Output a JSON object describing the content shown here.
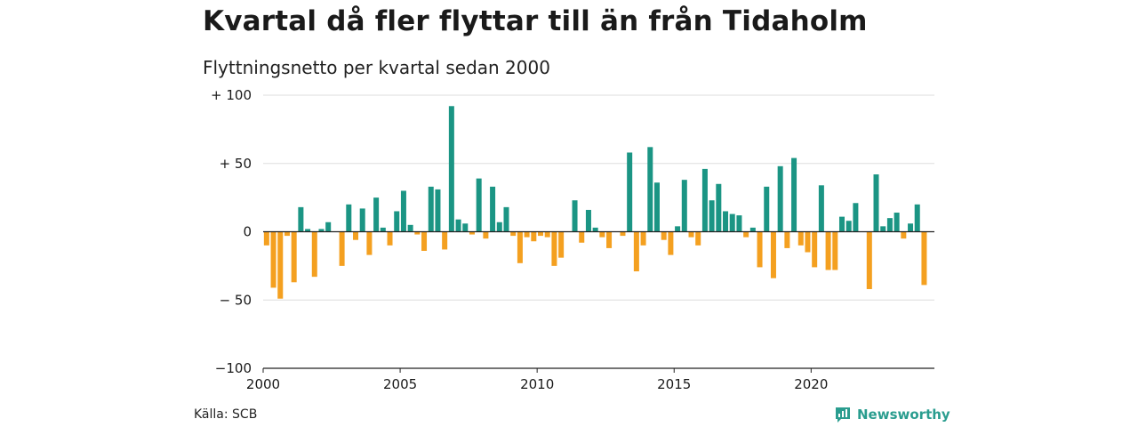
{
  "title": "Kvartal då fler flyttar till än från Tidaholm",
  "subtitle": "Flyttningsnetto per kvartal sedan 2000",
  "source": "Källa: SCB",
  "brand": {
    "name": "Newsworthy",
    "icon": "newsworthy-logo-icon"
  },
  "colors": {
    "positive": "#1b9584",
    "negative": "#f4a020",
    "grid": "#dddddd",
    "axis": "#222222"
  },
  "chart_data": {
    "type": "bar",
    "x_start": 2000,
    "quarters_per_year": 4,
    "y_ticks": [
      {
        "value": 100,
        "label": "+ 100"
      },
      {
        "value": 50,
        "label": "+  50"
      },
      {
        "value": 0,
        "label": "0"
      },
      {
        "value": -50,
        "label": "− 50"
      },
      {
        "value": -100,
        "label": "−100"
      }
    ],
    "x_ticks": [
      {
        "value": 2000,
        "label": "2000"
      },
      {
        "value": 2005,
        "label": "2005"
      },
      {
        "value": 2010,
        "label": "2010"
      },
      {
        "value": 2015,
        "label": "2015"
      },
      {
        "value": 2020,
        "label": "2020"
      }
    ],
    "ylim": [
      -100,
      100
    ],
    "xlim": [
      2000,
      2024.5
    ],
    "grid": true,
    "legend": "none",
    "values": [
      -10,
      -41,
      -49,
      -3,
      -37,
      18,
      2,
      -33,
      2,
      7,
      0,
      -25,
      20,
      -6,
      17,
      -17,
      25,
      3,
      -10,
      15,
      30,
      5,
      -2,
      -14,
      33,
      31,
      -13,
      92,
      9,
      6,
      -2,
      39,
      -5,
      33,
      7,
      18,
      -3,
      -23,
      -4,
      -7,
      -3,
      -4,
      -25,
      -19,
      0,
      23,
      -8,
      16,
      3,
      -4,
      -12,
      0,
      -3,
      58,
      -29,
      -10,
      62,
      36,
      -6,
      -17,
      4,
      38,
      -4,
      -10,
      46,
      23,
      35,
      15,
      13,
      12,
      -4,
      3,
      -26,
      33,
      -34,
      48,
      -12,
      54,
      -10,
      -15,
      -26,
      34,
      -28,
      -28,
      11,
      8,
      21,
      0,
      -42,
      42,
      4,
      10,
      14,
      -5,
      6,
      20,
      -39
    ]
  }
}
